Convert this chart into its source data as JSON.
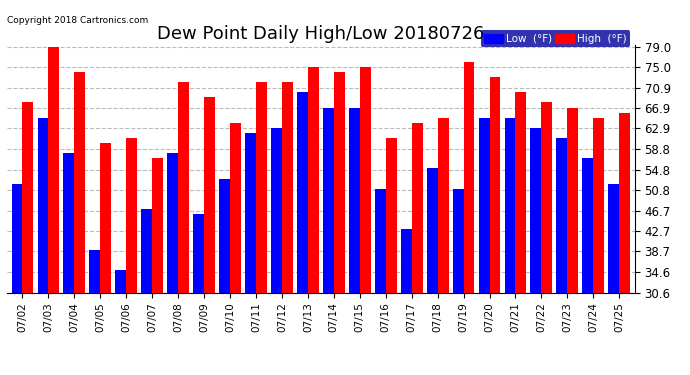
{
  "title": "Dew Point Daily High/Low 20180726",
  "copyright": "Copyright 2018 Cartronics.com",
  "dates": [
    "07/02",
    "07/03",
    "07/04",
    "07/05",
    "07/06",
    "07/07",
    "07/08",
    "07/09",
    "07/10",
    "07/11",
    "07/12",
    "07/13",
    "07/14",
    "07/15",
    "07/16",
    "07/17",
    "07/18",
    "07/19",
    "07/20",
    "07/21",
    "07/22",
    "07/23",
    "07/24",
    "07/25"
  ],
  "low_values": [
    52,
    65,
    58,
    39,
    35,
    47,
    58,
    46,
    53,
    62,
    63,
    70,
    67,
    67,
    51,
    43,
    55,
    51,
    65,
    65,
    63,
    61,
    57,
    52
  ],
  "high_values": [
    68,
    79,
    74,
    60,
    61,
    57,
    72,
    69,
    64,
    72,
    72,
    75,
    74,
    75,
    61,
    64,
    65,
    76,
    73,
    70,
    68,
    67,
    65,
    66
  ],
  "low_color": "#0000ff",
  "high_color": "#ff0000",
  "bg_color": "#ffffff",
  "grid_color": "#bbbbbb",
  "title_fontsize": 13,
  "ylabel_values": [
    30.6,
    34.6,
    38.7,
    42.7,
    46.7,
    50.8,
    54.8,
    58.8,
    62.9,
    66.9,
    70.9,
    75.0,
    79.0
  ],
  "ymin": 30.6,
  "ymax": 79.0,
  "legend_low_label": "Low  (°F)",
  "legend_high_label": "High  (°F)",
  "legend_bg": "#000099",
  "border_color": "#000000"
}
